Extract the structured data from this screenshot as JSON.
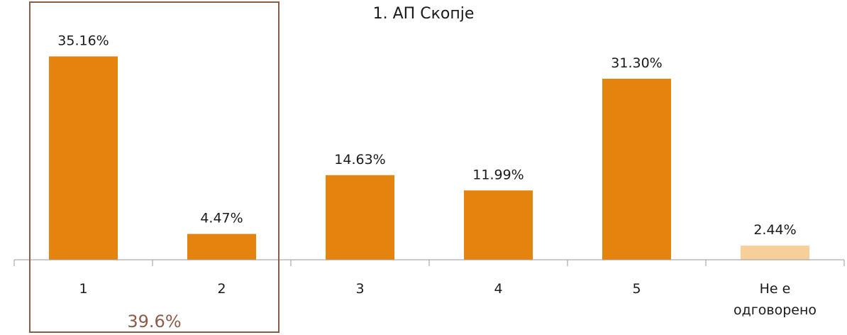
{
  "chart_data": {
    "type": "bar",
    "title": "1. АП Скопје",
    "categories": [
      "1",
      "2",
      "3",
      "4",
      "5",
      "Не е|одговорено"
    ],
    "values": [
      35.16,
      4.47,
      14.63,
      11.99,
      31.3,
      2.44
    ],
    "data_labels": [
      "35.16%",
      "4.47%",
      "14.63%",
      "11.99%",
      "31.30%",
      "2.44%"
    ],
    "bar_colors": [
      "#E5830F",
      "#E5830F",
      "#E5830F",
      "#E5830F",
      "#E5830F",
      "#F7CF9A"
    ],
    "ylim": [
      0,
      40
    ],
    "grid": false,
    "legend": "none",
    "highlight_group": {
      "categories": [
        "1",
        "2"
      ],
      "label": "39.6%",
      "color": "#8C5C4A"
    }
  }
}
